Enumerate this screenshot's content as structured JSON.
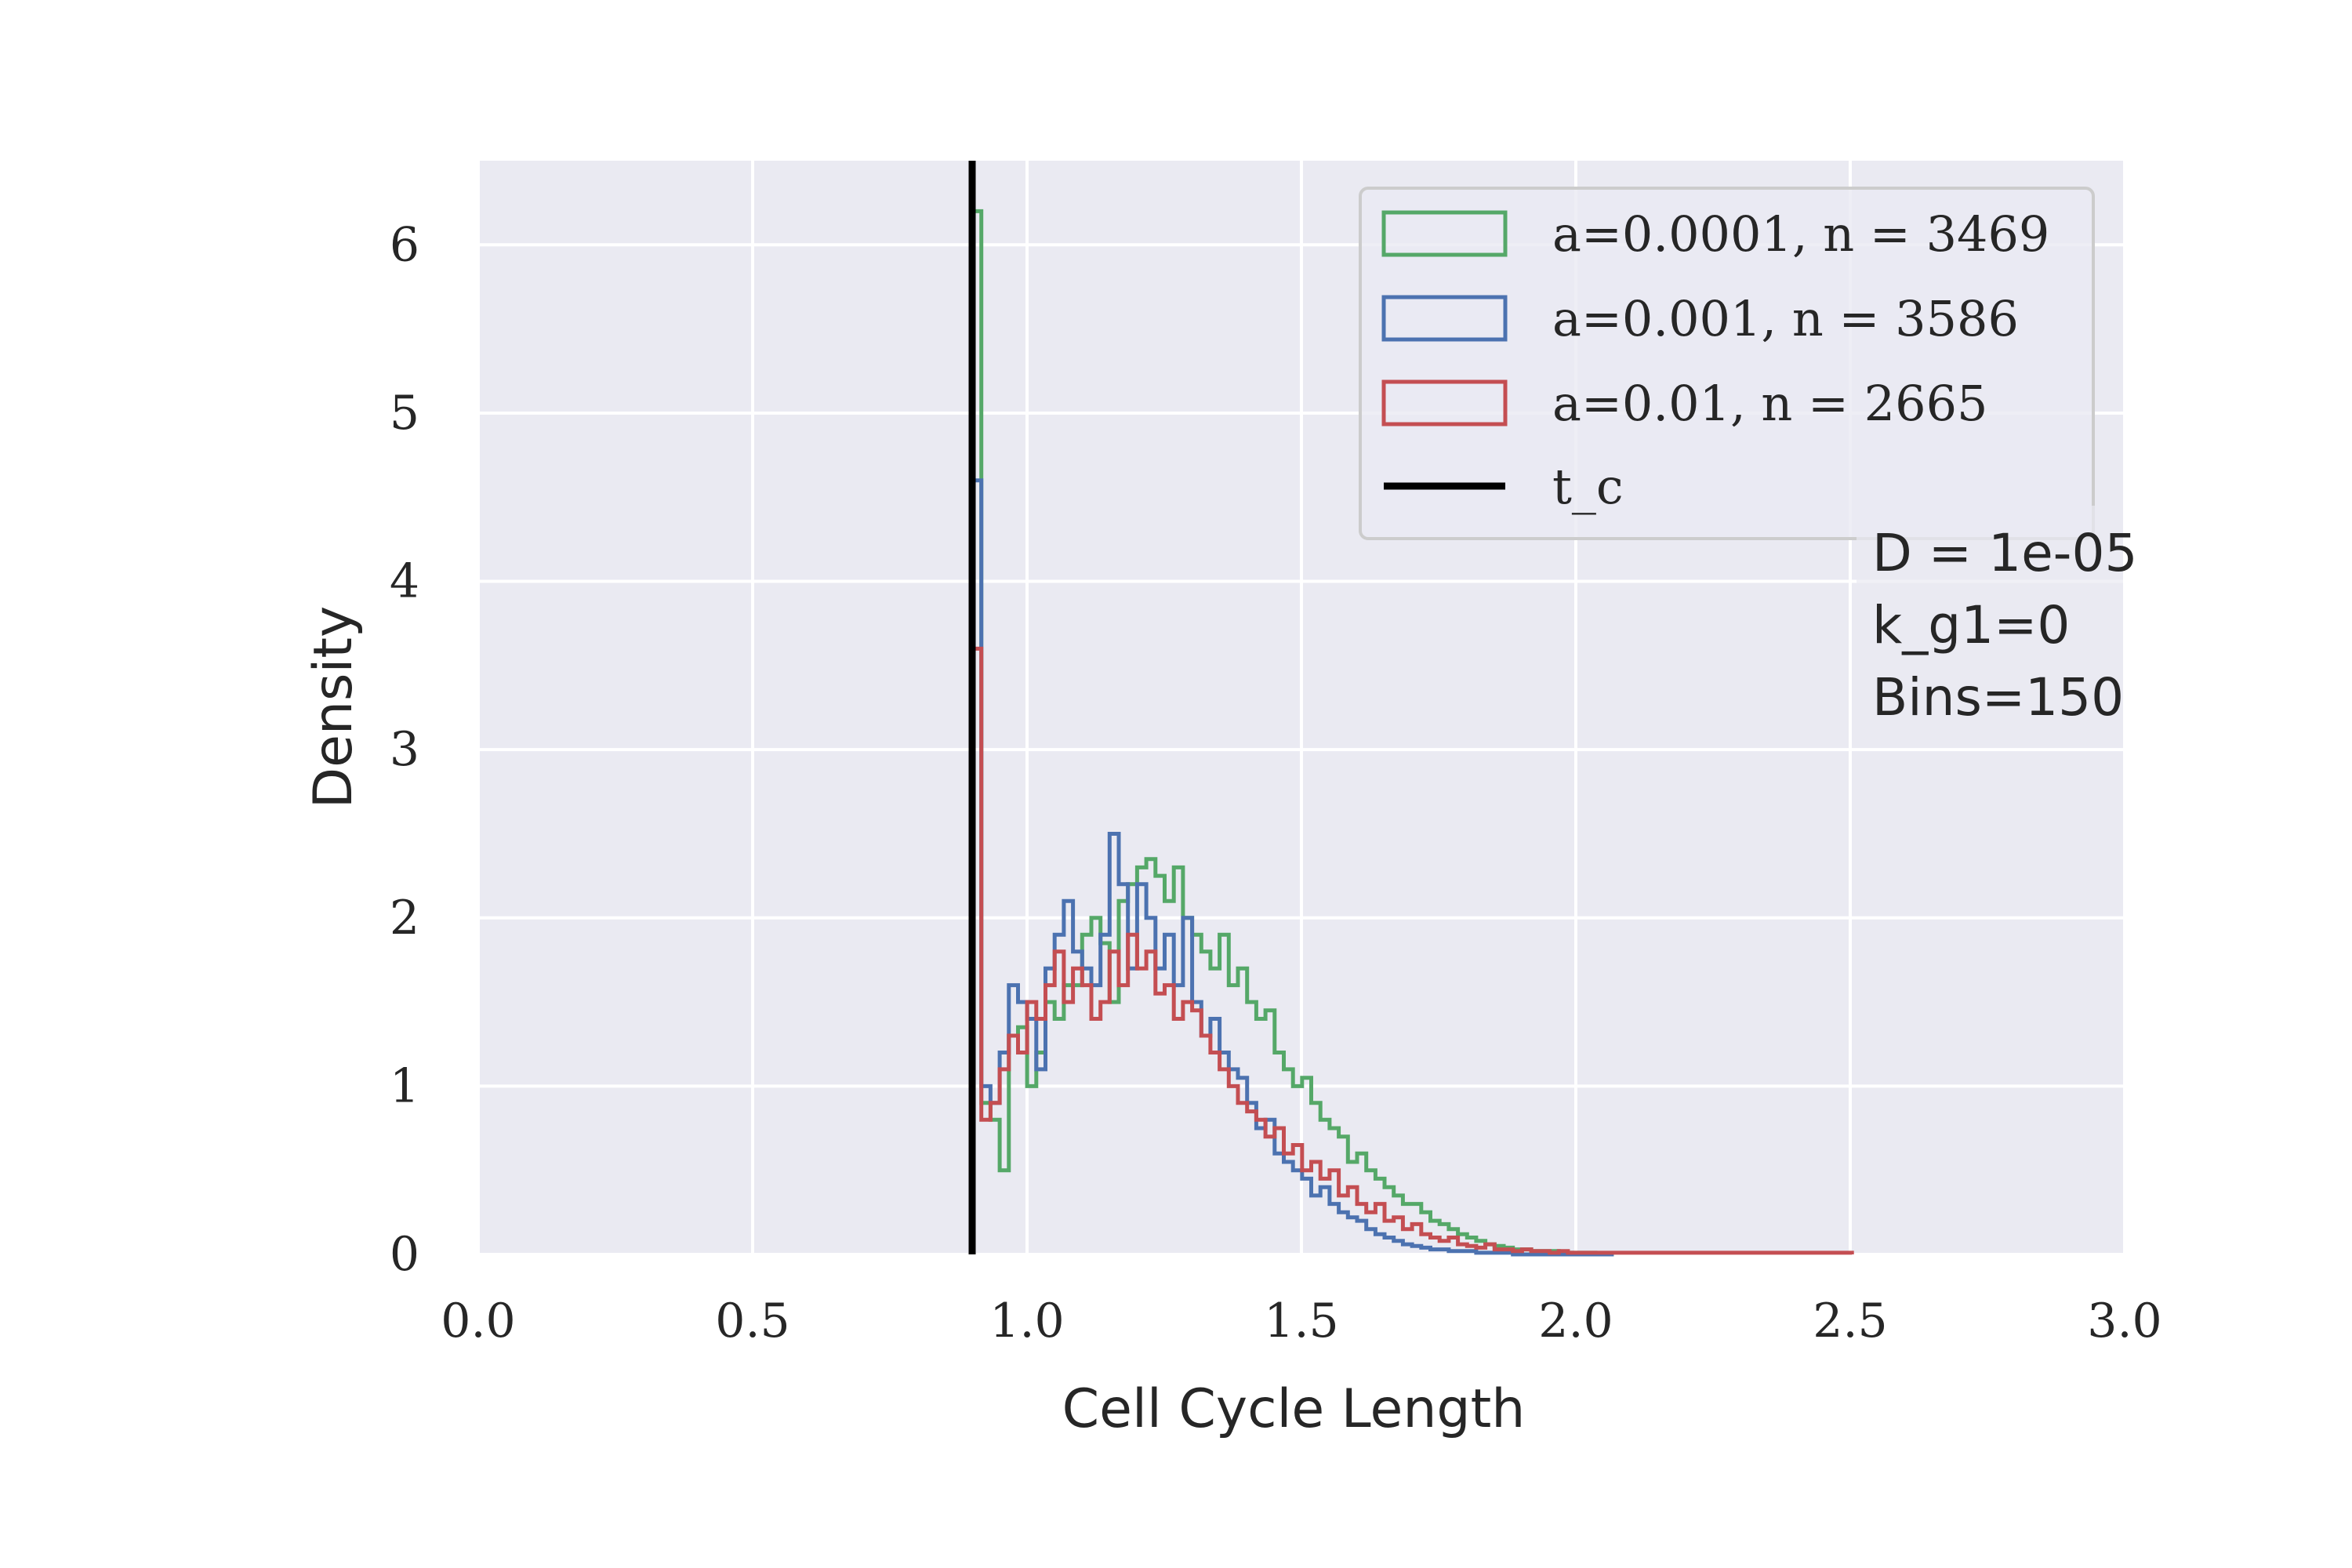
{
  "chart_data": {
    "type": "histogram",
    "xlabel": "Cell Cycle Length",
    "ylabel": "Density",
    "xlim": [
      0.0,
      3.0
    ],
    "ylim": [
      0,
      6.5
    ],
    "xticks": [
      "0.0",
      "0.5",
      "1.0",
      "1.5",
      "2.0",
      "2.5",
      "3.0"
    ],
    "yticks": [
      "0",
      "1",
      "2",
      "3",
      "4",
      "5",
      "6"
    ],
    "grid": true,
    "legend_position": "top-right",
    "background": "#eaeaf2",
    "vline": {
      "name": "t_c",
      "x": 0.9,
      "color": "#000000"
    },
    "series": [
      {
        "name": "a=0.0001, n = 3469",
        "color": "#55a868",
        "bin_width": 0.0167,
        "x_start": 0.9,
        "values": [
          6.2,
          0.9,
          0.8,
          0.5,
          1.3,
          1.35,
          1.0,
          1.2,
          1.5,
          1.4,
          1.6,
          1.6,
          1.9,
          2.0,
          1.85,
          1.5,
          2.1,
          2.2,
          2.3,
          2.35,
          2.25,
          2.1,
          2.3,
          2.0,
          1.9,
          1.8,
          1.7,
          1.9,
          1.6,
          1.7,
          1.5,
          1.4,
          1.45,
          1.2,
          1.1,
          1.0,
          1.05,
          0.9,
          0.8,
          0.75,
          0.7,
          0.55,
          0.6,
          0.5,
          0.45,
          0.4,
          0.35,
          0.3,
          0.3,
          0.25,
          0.2,
          0.18,
          0.15,
          0.12,
          0.1,
          0.08,
          0.06,
          0.05,
          0.04,
          0.03,
          0.03,
          0.02,
          0.02,
          0.02,
          0.01,
          0.01,
          0.01,
          0.01,
          0.0,
          0.0
        ]
      },
      {
        "name": "a=0.001, n = 3586",
        "color": "#4c72b0",
        "bin_width": 0.0167,
        "x_start": 0.9,
        "values": [
          4.6,
          1.0,
          0.9,
          1.2,
          1.6,
          1.5,
          1.4,
          1.1,
          1.7,
          1.9,
          2.1,
          1.8,
          1.7,
          1.6,
          1.9,
          2.5,
          2.2,
          1.7,
          2.2,
          2.0,
          1.7,
          1.9,
          1.6,
          2.0,
          1.5,
          1.3,
          1.4,
          1.2,
          1.1,
          1.05,
          0.9,
          0.75,
          0.8,
          0.6,
          0.55,
          0.5,
          0.45,
          0.35,
          0.4,
          0.3,
          0.25,
          0.22,
          0.2,
          0.15,
          0.12,
          0.1,
          0.08,
          0.06,
          0.05,
          0.04,
          0.03,
          0.03,
          0.02,
          0.02,
          0.02,
          0.01,
          0.01,
          0.01,
          0.01,
          0.0,
          0.0,
          0.0,
          0.0,
          0.0,
          0.0,
          0.0,
          0.0,
          0.0,
          0.0,
          0.0
        ]
      },
      {
        "name": "a=0.01, n = 2665",
        "color": "#c44e52",
        "bin_width": 0.0167,
        "x_start": 0.9,
        "values": [
          3.6,
          0.8,
          0.9,
          1.1,
          1.3,
          1.2,
          1.5,
          1.4,
          1.6,
          1.8,
          1.5,
          1.7,
          1.6,
          1.4,
          1.5,
          1.8,
          1.6,
          1.9,
          1.7,
          1.8,
          1.55,
          1.6,
          1.4,
          1.5,
          1.45,
          1.3,
          1.2,
          1.1,
          1.0,
          0.9,
          0.85,
          0.8,
          0.7,
          0.75,
          0.6,
          0.65,
          0.5,
          0.55,
          0.45,
          0.5,
          0.35,
          0.4,
          0.3,
          0.25,
          0.3,
          0.2,
          0.22,
          0.15,
          0.18,
          0.12,
          0.1,
          0.08,
          0.1,
          0.06,
          0.05,
          0.04,
          0.06,
          0.03,
          0.03,
          0.02,
          0.03,
          0.02,
          0.02,
          0.01,
          0.02,
          0.01,
          0.01,
          0.01,
          0.01,
          0.01,
          0.01,
          0.01,
          0.01,
          0.01,
          0.01,
          0.01,
          0.01,
          0.01,
          0.01,
          0.01,
          0.01,
          0.01,
          0.01,
          0.01,
          0.01,
          0.01,
          0.01,
          0.01,
          0.01,
          0.01,
          0.01,
          0.01,
          0.01,
          0.01,
          0.01,
          0.01
        ]
      }
    ],
    "legend": [
      {
        "label": "a=0.0001, n = 3469",
        "color": "#55a868",
        "kind": "patch"
      },
      {
        "label": "a=0.001, n = 3586",
        "color": "#4c72b0",
        "kind": "patch"
      },
      {
        "label": "a=0.01, n = 2665",
        "color": "#c44e52",
        "kind": "patch"
      },
      {
        "label": "t_c",
        "color": "#000000",
        "kind": "line"
      }
    ],
    "annotation": [
      "D = 1e-05",
      "k_g1=0",
      "Bins=150"
    ]
  }
}
